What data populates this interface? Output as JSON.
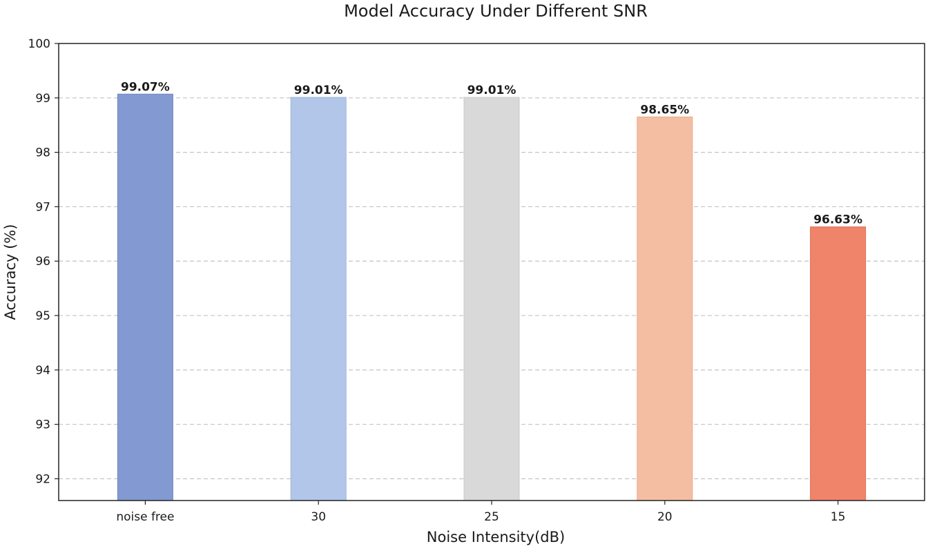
{
  "chart_data": {
    "type": "bar",
    "title": "Model Accuracy Under Different SNR",
    "xlabel": "Noise Intensity(dB)",
    "ylabel": "Accuracy (%)",
    "categories": [
      "noise free",
      "30",
      "25",
      "20",
      "15"
    ],
    "values": [
      99.07,
      99.01,
      99.01,
      98.65,
      96.63
    ],
    "data_labels": [
      "99.07%",
      "99.01%",
      "99.01%",
      "98.65%",
      "96.63%"
    ],
    "colors": [
      "#8399d1",
      "#b1c6e8",
      "#d9d9d9",
      "#f4bea2",
      "#ef846a"
    ],
    "edge_colors": [
      "#7386bd",
      "#9db4dc",
      "#c9c9c9",
      "#eaa98a",
      "#e06f55"
    ],
    "ylim": [
      91.6,
      100
    ],
    "yticks": [
      92,
      93,
      94,
      95,
      96,
      97,
      98,
      99,
      100
    ],
    "grid": true,
    "grid_axis": "y",
    "grid_style": "dashed"
  }
}
